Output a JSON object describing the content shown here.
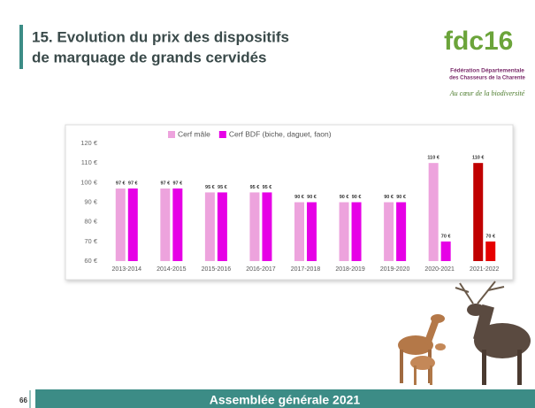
{
  "header": {
    "title_lines": [
      "15. Evolution du prix des dispositifs",
      "de marquage de grands cervidés"
    ]
  },
  "logo": {
    "mark": "fdc16",
    "org_lines": [
      "Fédération Départementale",
      "des Chasseurs de la Charente"
    ],
    "tagline": "Au cœur de la biodiversité"
  },
  "footer": {
    "page_number": "66",
    "text": "Assemblée générale 2021"
  },
  "chart_data": {
    "type": "bar",
    "categories": [
      "2013-2014",
      "2014-2015",
      "2015-2016",
      "2016-2017",
      "2017-2018",
      "2018-2019",
      "2019-2020",
      "2020-2021",
      "2021-2022"
    ],
    "series": [
      {
        "name": "Cerf mâle",
        "color": "#eda3dd",
        "colors": [
          "#eda3dd",
          "#eda3dd",
          "#eda3dd",
          "#eda3dd",
          "#eda3dd",
          "#eda3dd",
          "#eda3dd",
          "#eda3dd",
          "#c00000"
        ],
        "values": [
          97,
          97,
          95,
          95,
          90,
          90,
          90,
          110,
          110
        ],
        "value_labels": [
          "97 €",
          "97 €",
          "95 €",
          "95 €",
          "90 €",
          "90 €",
          "90 €",
          "110 €",
          "110 €"
        ]
      },
      {
        "name": "Cerf BDF (biche, daguet, faon)",
        "color": "#e600e6",
        "colors": [
          "#e600e6",
          "#e600e6",
          "#e600e6",
          "#e600e6",
          "#e600e6",
          "#e600e6",
          "#e600e6",
          "#e600e6",
          "#e60000"
        ],
        "values": [
          97,
          97,
          95,
          95,
          90,
          90,
          90,
          70,
          70
        ],
        "value_labels": [
          "97 €",
          "97 €",
          "95 €",
          "95 €",
          "90 €",
          "90 €",
          "90 €",
          "70 €",
          "70 €"
        ]
      }
    ],
    "ylim": [
      60,
      120
    ],
    "yticks": [
      {
        "value": 60,
        "label": "60 €"
      },
      {
        "value": 70,
        "label": "70 €"
      },
      {
        "value": 80,
        "label": "80 €"
      },
      {
        "value": 90,
        "label": "90 €"
      },
      {
        "value": 100,
        "label": "100 €"
      },
      {
        "value": 110,
        "label": "110 €"
      },
      {
        "value": 120,
        "label": "120 €"
      }
    ],
    "grid": false,
    "legend": "top"
  }
}
